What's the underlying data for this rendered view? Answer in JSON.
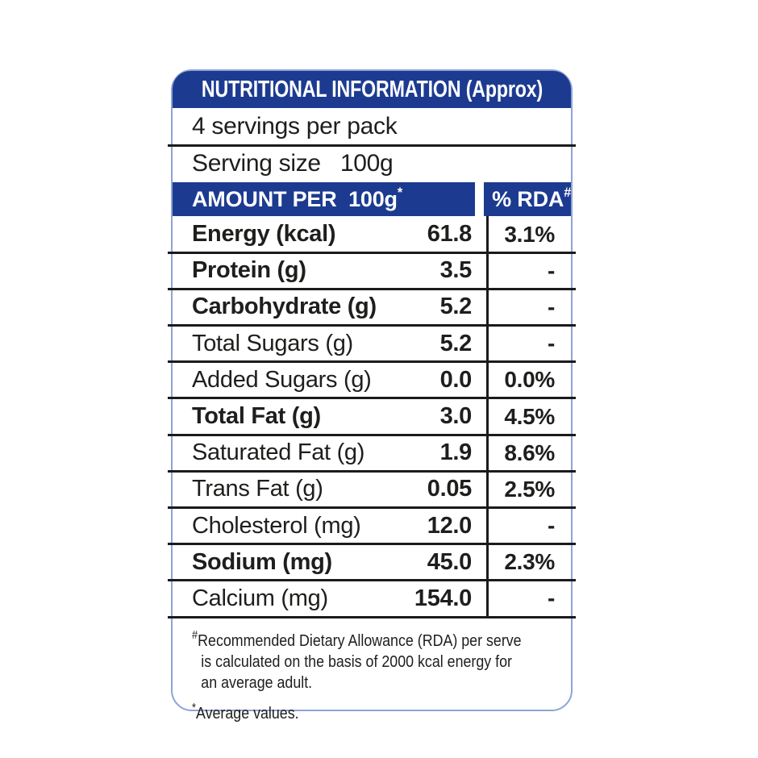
{
  "header": {
    "title": "NUTRITIONAL INFORMATION (Approx)"
  },
  "serving": {
    "servings_per_pack": "4 servings per pack",
    "serving_size_label": "Serving size",
    "serving_size_value": "100g"
  },
  "columns": {
    "amount_label": "AMOUNT PER  100g",
    "amount_sup": "*",
    "rda_label": "% RDA",
    "rda_sup": "#"
  },
  "table": {
    "rows": [
      {
        "name": "Energy (kcal)",
        "amount": "61.8",
        "rda": "3.1%"
      },
      {
        "name": "Protein (g)",
        "amount": "3.5",
        "rda": "-"
      },
      {
        "name": "Carbohydrate (g)",
        "amount": "5.2",
        "rda": "-"
      },
      {
        "name": "Total Sugars (g)",
        "amount": "5.2",
        "rda": "-"
      },
      {
        "name": "Added Sugars (g)",
        "amount": "0.0",
        "rda": "0.0%"
      },
      {
        "name": "Total Fat (g)",
        "amount": "3.0",
        "rda": "4.5%"
      },
      {
        "name": "Saturated Fat (g)",
        "amount": "1.9",
        "rda": "8.6%"
      },
      {
        "name": "Trans Fat (g)",
        "amount": "0.05",
        "rda": "2.5%"
      },
      {
        "name": "Cholesterol (mg)",
        "amount": "12.0",
        "rda": "-"
      },
      {
        "name": "Sodium (mg)",
        "amount": "45.0",
        "rda": "2.3%"
      },
      {
        "name": "Calcium (mg)",
        "amount": "154.0",
        "rda": "-"
      }
    ]
  },
  "footnotes": {
    "rda_marker": "#",
    "rda_lines": [
      "Recommended Dietary Allowance (RDA) per serve",
      "is calculated on the basis of 2000 kcal energy for",
      "an average adult."
    ],
    "avg_marker": "*",
    "avg_text": "Average values."
  },
  "colors": {
    "brand_blue": "#1c3b90",
    "border_blue": "#8ea3d6"
  }
}
